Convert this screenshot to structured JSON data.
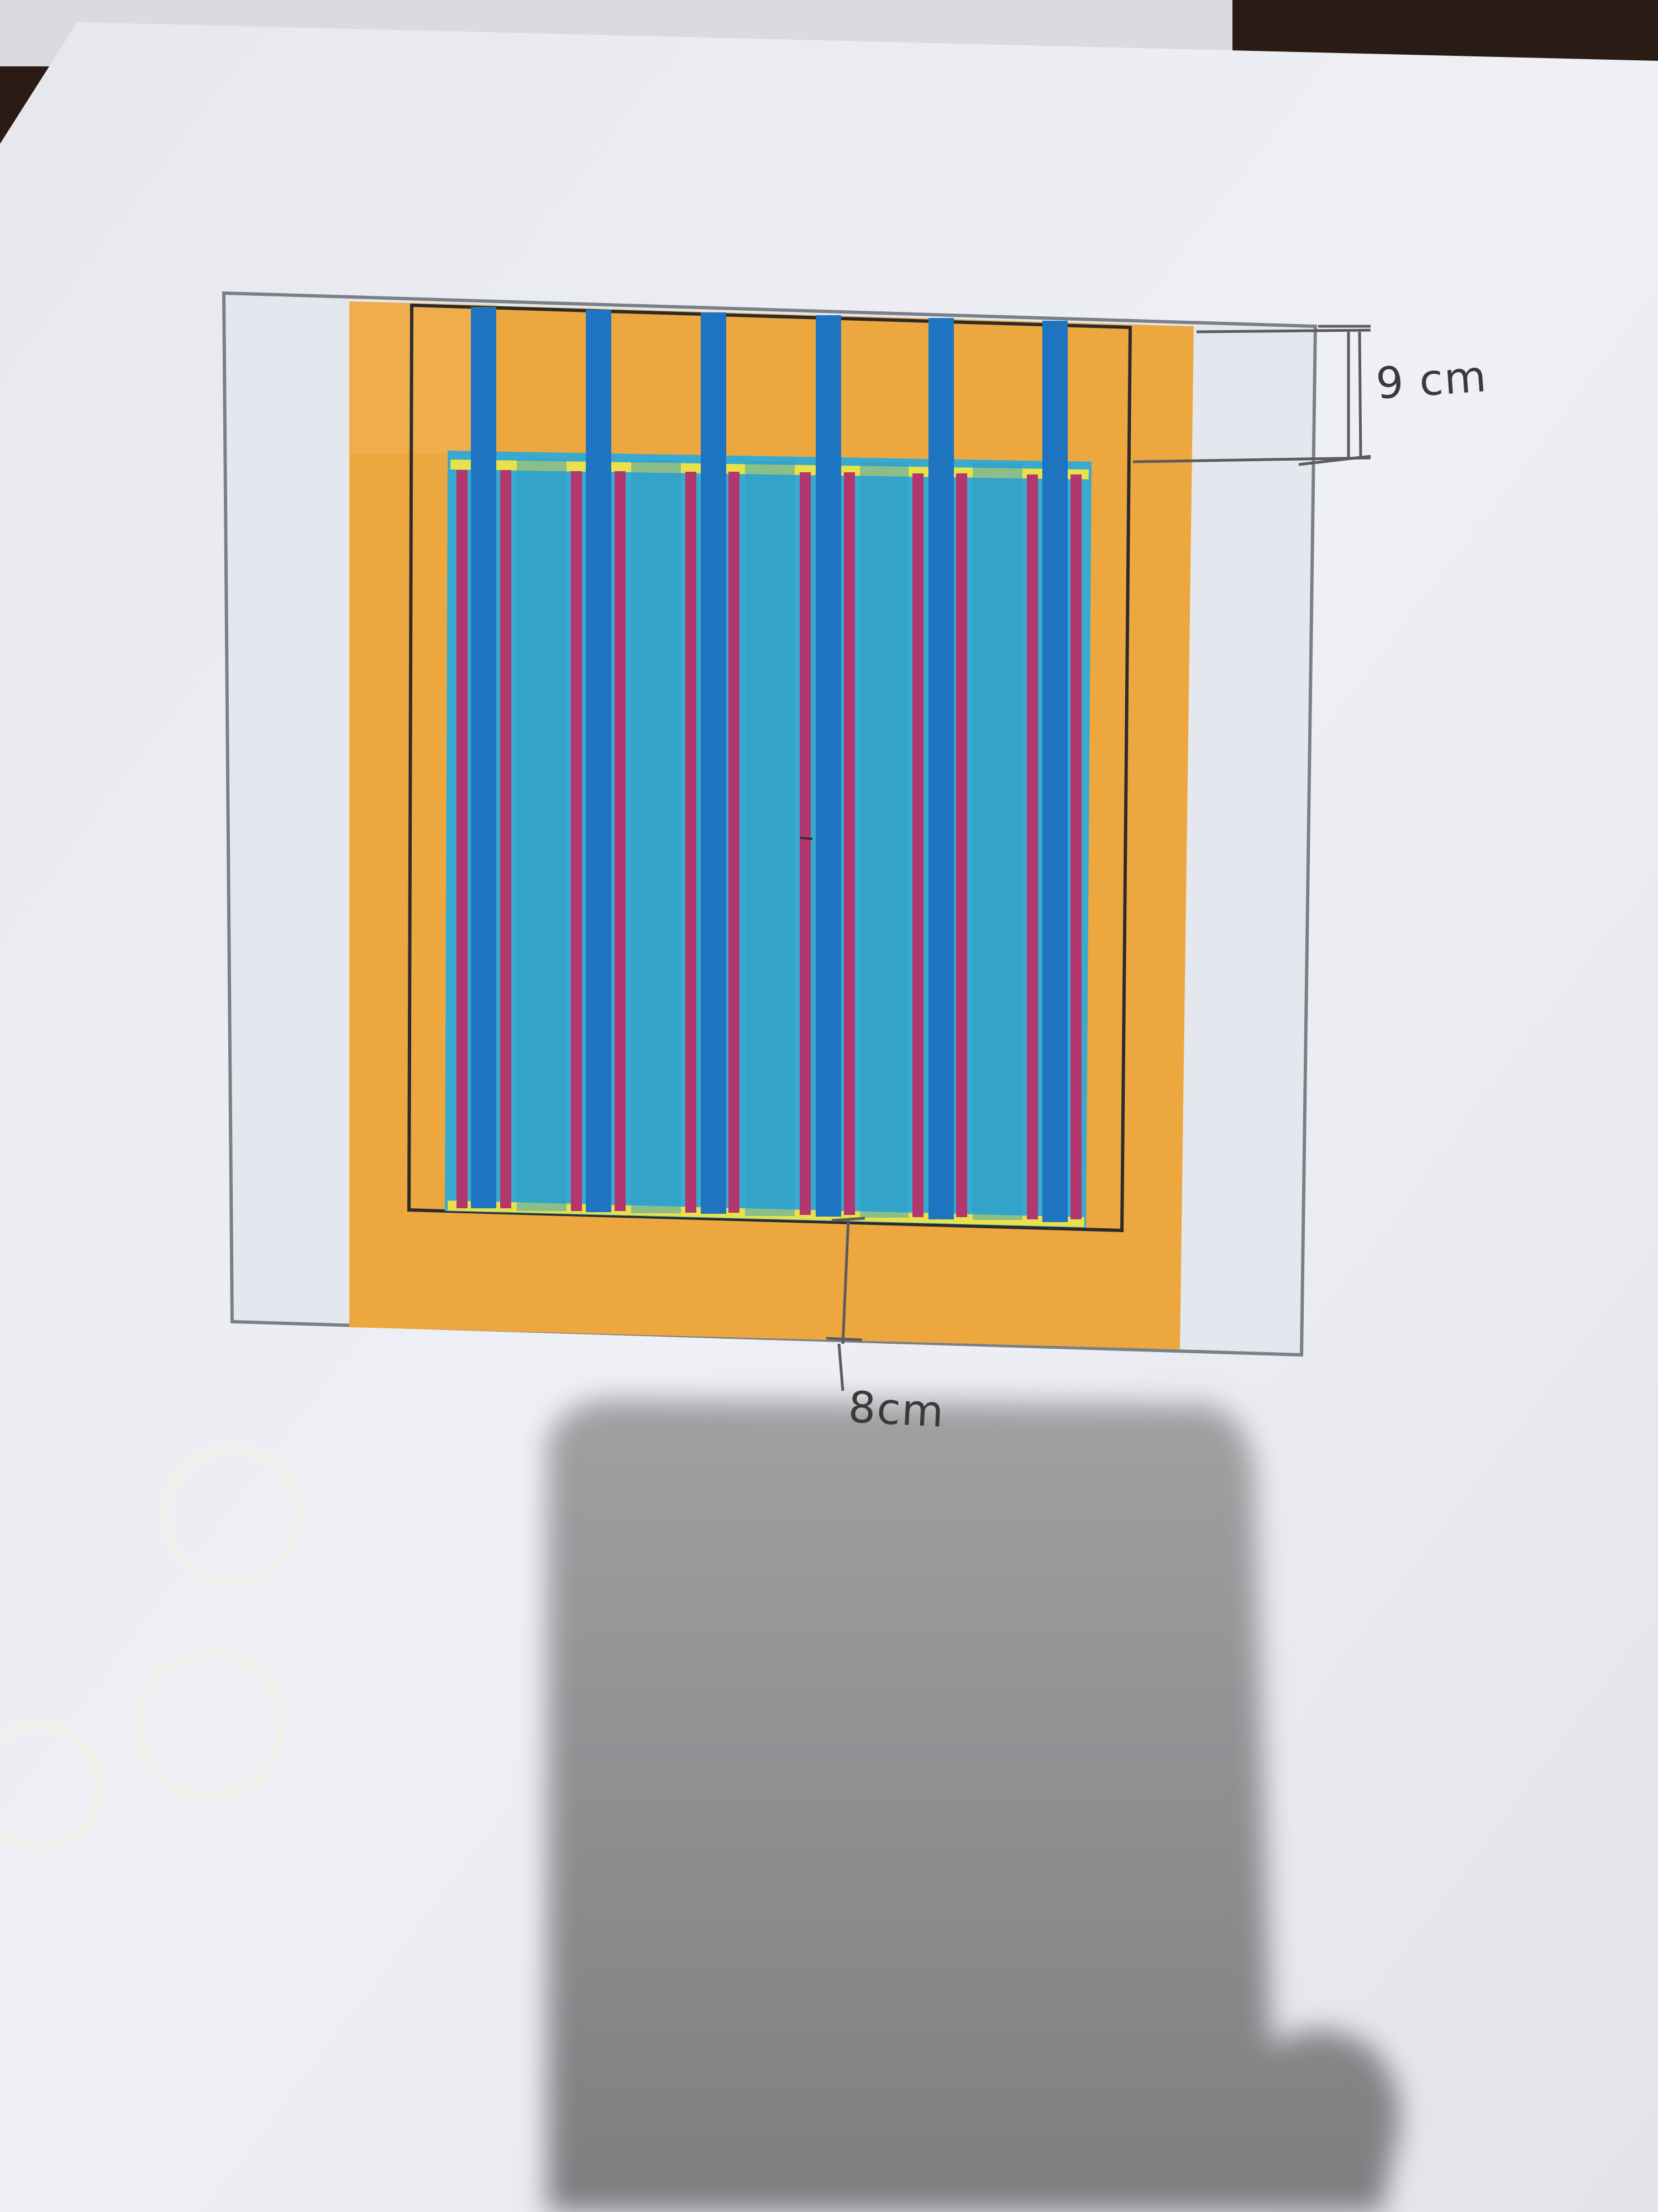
{
  "annotations": {
    "top_gap": "9 cm",
    "bottom_gap": "8cm"
  },
  "figure": {
    "colors": {
      "paper": "#eceef3",
      "outer_frame": "#e3e6ec",
      "frame_line": "#7a7f88",
      "orange_body": "#eda73f",
      "inner_outline": "#2b2b2b",
      "cyan_panel": "#38a9cf",
      "blue_strip": "#1f74c2",
      "magenta_strip": "#b4366e",
      "yellow_line": "#e9e14a",
      "shadow": "#8e8c8d"
    },
    "blue_strip_count": 6,
    "magenta_strip_pairs": 6
  }
}
